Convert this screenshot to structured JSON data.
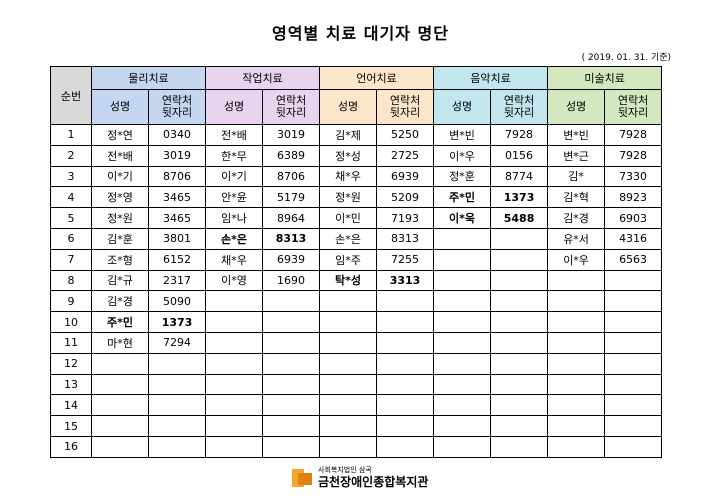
{
  "title": "영역별 치료 대기자 명단",
  "date": "( 2019. 01. 31. 기준)",
  "table": {
    "seq_header": "순번",
    "fields": [
      {
        "name": "물리치료",
        "color": "#c5d6f0"
      },
      {
        "name": "작업치료",
        "color": "#e8d4ee"
      },
      {
        "name": "언어치료",
        "color": "#fce6c9"
      },
      {
        "name": "음악치료",
        "color": "#c2e6ee"
      },
      {
        "name": "미술치료",
        "color": "#d4e8c0"
      }
    ],
    "sub_name": "성명",
    "sub_contact_1": "연락처",
    "sub_contact_2": "뒷자리",
    "rows": [
      {
        "seq": "1",
        "cells": [
          [
            "정*연",
            "0340"
          ],
          [
            "전*배",
            "3019"
          ],
          [
            "김*제",
            "5250"
          ],
          [
            "변*빈",
            "7928"
          ],
          [
            "변*빈",
            "7928"
          ]
        ]
      },
      {
        "seq": "2",
        "cells": [
          [
            "전*배",
            "3019"
          ],
          [
            "한*무",
            "6389"
          ],
          [
            "정*성",
            "2725"
          ],
          [
            "이*우",
            "0156"
          ],
          [
            "변*근",
            "7928"
          ]
        ]
      },
      {
        "seq": "3",
        "cells": [
          [
            "이*기",
            "8706"
          ],
          [
            "이*기",
            "8706"
          ],
          [
            "채*우",
            "6939"
          ],
          [
            "정*훈",
            "8774"
          ],
          [
            "김*",
            "7330"
          ]
        ]
      },
      {
        "seq": "4",
        "cells": [
          [
            "정*영",
            "3465"
          ],
          [
            "안*윤",
            "5179"
          ],
          [
            "정*원",
            "5209"
          ],
          [
            "주*민",
            "1373"
          ],
          [
            "김*혁",
            "8923"
          ]
        ]
      },
      {
        "seq": "5",
        "cells": [
          [
            "정*원",
            "3465"
          ],
          [
            "임*나",
            "8964"
          ],
          [
            "이*민",
            "7193"
          ],
          [
            "이*욱",
            "5488"
          ],
          [
            "김*경",
            "6903"
          ]
        ]
      },
      {
        "seq": "6",
        "cells": [
          [
            "김*훈",
            "3801"
          ],
          [
            "손*은",
            "8313"
          ],
          [
            "손*은",
            "8313"
          ],
          [
            "",
            ""
          ],
          [
            "유*서",
            "4316"
          ]
        ]
      },
      {
        "seq": "7",
        "cells": [
          [
            "조*형",
            "6152"
          ],
          [
            "채*우",
            "6939"
          ],
          [
            "임*주",
            "7255"
          ],
          [
            "",
            ""
          ],
          [
            "이*우",
            "6563"
          ]
        ]
      },
      {
        "seq": "8",
        "cells": [
          [
            "김*규",
            "2317"
          ],
          [
            "이*영",
            "1690"
          ],
          [
            "탁*성",
            "3313"
          ],
          [
            "",
            ""
          ],
          [
            "",
            ""
          ]
        ]
      },
      {
        "seq": "9",
        "cells": [
          [
            "김*경",
            "5090"
          ],
          [
            "",
            ""
          ],
          [
            "",
            ""
          ],
          [
            "",
            ""
          ],
          [
            "",
            ""
          ]
        ]
      },
      {
        "seq": "10",
        "cells": [
          [
            "주*민",
            "1373"
          ],
          [
            "",
            ""
          ],
          [
            "",
            ""
          ],
          [
            "",
            ""
          ],
          [
            "",
            ""
          ]
        ]
      },
      {
        "seq": "11",
        "cells": [
          [
            "마*현",
            "7294"
          ],
          [
            "",
            ""
          ],
          [
            "",
            ""
          ],
          [
            "",
            ""
          ],
          [
            "",
            ""
          ]
        ]
      },
      {
        "seq": "12",
        "cells": [
          [
            "",
            ""
          ],
          [
            "",
            ""
          ],
          [
            "",
            ""
          ],
          [
            "",
            ""
          ],
          [
            "",
            ""
          ]
        ]
      },
      {
        "seq": "13",
        "cells": [
          [
            "",
            ""
          ],
          [
            "",
            ""
          ],
          [
            "",
            ""
          ],
          [
            "",
            ""
          ],
          [
            "",
            ""
          ]
        ]
      },
      {
        "seq": "14",
        "cells": [
          [
            "",
            ""
          ],
          [
            "",
            ""
          ],
          [
            "",
            ""
          ],
          [
            "",
            ""
          ],
          [
            "",
            ""
          ]
        ]
      },
      {
        "seq": "15",
        "cells": [
          [
            "",
            ""
          ],
          [
            "",
            ""
          ],
          [
            "",
            ""
          ],
          [
            "",
            ""
          ],
          [
            "",
            ""
          ]
        ]
      },
      {
        "seq": "16",
        "cells": [
          [
            "",
            ""
          ],
          [
            "",
            ""
          ],
          [
            "",
            ""
          ],
          [
            "",
            ""
          ],
          [
            "",
            ""
          ]
        ]
      }
    ],
    "bold_entries": [
      "9.0",
      "11.0",
      "5.1",
      "7.2",
      "3.3",
      "4.3"
    ]
  },
  "footer": {
    "org_sub": "사회복지법인 삼곡",
    "org_name": "금천장애인종합복지관",
    "logo_color": "#f1a52b"
  }
}
